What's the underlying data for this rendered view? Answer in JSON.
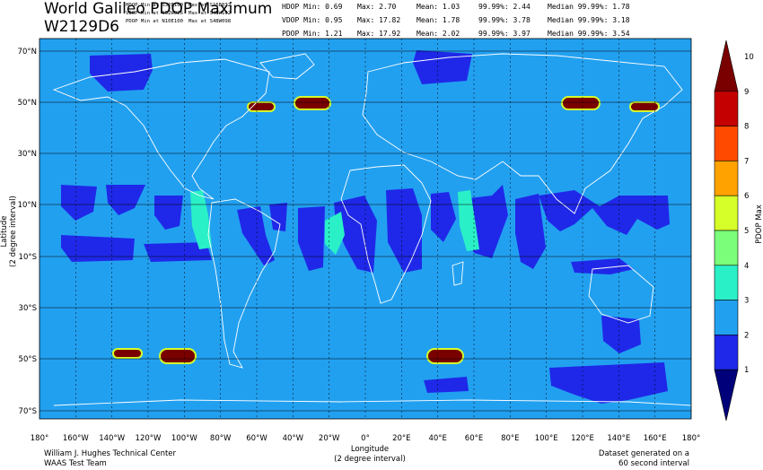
{
  "title": "World Galileo PDOP Maximum",
  "subtitle": "W2129D6",
  "minmax_locations": [
    {
      "label": "HDOP Min at S32E160",
      "max": "Max at S16E032"
    },
    {
      "label": "VDOP Min at S52W026",
      "max": "Max at S48W102"
    },
    {
      "label": "PDOP Min at N10E100",
      "max": "Max at S48W098"
    }
  ],
  "stats": [
    {
      "name": "HDOP Min: 0.69",
      "max": "Max: 2.70",
      "mean": "Mean: 1.03",
      "p": "99.99%: 2.44",
      "median": "Median 99.99%: 1.78"
    },
    {
      "name": "VDOP Min: 0.95",
      "max": "Max: 17.82",
      "mean": "Mean: 1.78",
      "p": "99.99%: 3.78",
      "median": "Median 99.99%: 3.18"
    },
    {
      "name": "PDOP Min: 1.21",
      "max": "Max: 17.92",
      "mean": "Mean: 2.02",
      "p": "99.99%: 3.97",
      "median": "Median 99.99%: 3.54"
    }
  ],
  "axes": {
    "ylabel": "Latitude\n(2 degree interval)",
    "ylabel_line1": "Latitude",
    "ylabel_line2": "(2 degree interval)",
    "xlabel_line1": "Longitude",
    "xlabel_line2": "(2 degree interval)",
    "lat_ticks": [
      "70°N",
      "50°N",
      "30°N",
      "10°N",
      "10°S",
      "30°S",
      "50°S",
      "70°S"
    ],
    "lon_ticks": [
      "180°",
      "160°W",
      "140°W",
      "120°W",
      "100°W",
      "80°W",
      "60°W",
      "40°W",
      "20°W",
      "0°",
      "20°E",
      "40°E",
      "60°E",
      "80°E",
      "100°E",
      "120°E",
      "140°E",
      "160°E",
      "180°"
    ]
  },
  "colorbar": {
    "label": "PDOP Max",
    "ticks": [
      "10",
      "9",
      "8",
      "7",
      "6",
      "5",
      "4",
      "3",
      "2",
      "1"
    ],
    "colors": [
      "#7a0000",
      "#c40000",
      "#ff4a00",
      "#ffa200",
      "#d6ff2a",
      "#7bff7b",
      "#2af0c8",
      "#22a0f0",
      "#1f28e8",
      "#00007a"
    ]
  },
  "footer": {
    "left1": "William J. Hughes Technical Center",
    "left2": "WAAS Test Team",
    "right1": "Dataset generated on a",
    "right2": "60 second interval"
  },
  "map_colors": {
    "background": "#22a0f0",
    "low": "#1f28e8",
    "cyan": "#2af0c8",
    "high": "#7a0000"
  }
}
